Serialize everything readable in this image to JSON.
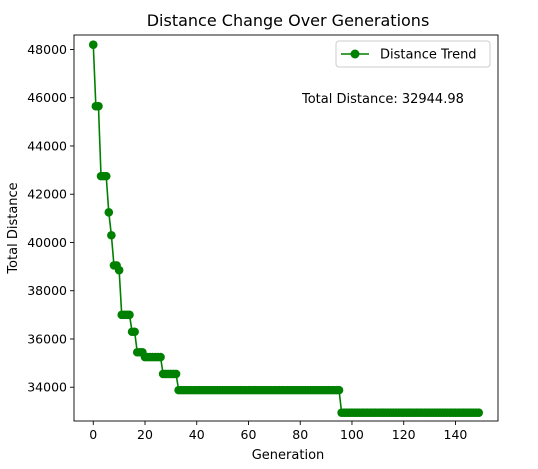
{
  "chart_data": {
    "type": "line",
    "title": "Distance Change Over Generations",
    "xlabel": "Generation",
    "ylabel": "Total Distance",
    "xlim": [
      -7.45,
      156.45
    ],
    "ylim": [
      32600,
      48600
    ],
    "x_ticks": [
      0,
      20,
      40,
      60,
      80,
      100,
      120,
      140
    ],
    "y_ticks": [
      34000,
      36000,
      38000,
      40000,
      42000,
      44000,
      46000,
      48000
    ],
    "grid": false,
    "legend_position": "top-right",
    "series_color": "#008000",
    "annotation": "Total Distance: 32944.98",
    "series": [
      {
        "name": "Distance Trend",
        "x": [
          0,
          1,
          2,
          3,
          4,
          5,
          6,
          7,
          8,
          9,
          10,
          11,
          12,
          13,
          14,
          15,
          16,
          17,
          18,
          19,
          20,
          21,
          22,
          23,
          24,
          25,
          26,
          27,
          28,
          29,
          30,
          31,
          32,
          33,
          34,
          35,
          36,
          37,
          38,
          39,
          40,
          41,
          42,
          43,
          44,
          45,
          46,
          47,
          48,
          49,
          50,
          51,
          52,
          53,
          54,
          55,
          56,
          57,
          58,
          59,
          60,
          61,
          62,
          63,
          64,
          65,
          66,
          67,
          68,
          69,
          70,
          71,
          72,
          73,
          74,
          75,
          76,
          77,
          78,
          79,
          80,
          81,
          82,
          83,
          84,
          85,
          86,
          87,
          88,
          89,
          90,
          91,
          92,
          93,
          94,
          95,
          96,
          97,
          98,
          99,
          100,
          101,
          102,
          103,
          104,
          105,
          106,
          107,
          108,
          109,
          110,
          111,
          112,
          113,
          114,
          115,
          116,
          117,
          118,
          119,
          120,
          121,
          122,
          123,
          124,
          125,
          126,
          127,
          128,
          129,
          130,
          131,
          132,
          133,
          134,
          135,
          136,
          137,
          138,
          139,
          140,
          141,
          142,
          143,
          144,
          145,
          146,
          147,
          148,
          149
        ],
        "y": [
          48200,
          45650,
          45650,
          42750,
          42750,
          42750,
          41250,
          40300,
          39050,
          39050,
          38850,
          37000,
          37000,
          37000,
          37000,
          36300,
          36300,
          35450,
          35450,
          35450,
          35250,
          35250,
          35250,
          35250,
          35250,
          35250,
          35250,
          34550,
          34550,
          34550,
          34550,
          34550,
          34550,
          33880,
          33880,
          33880,
          33880,
          33880,
          33880,
          33880,
          33880,
          33880,
          33880,
          33880,
          33880,
          33880,
          33880,
          33880,
          33880,
          33880,
          33880,
          33880,
          33880,
          33880,
          33880,
          33880,
          33880,
          33880,
          33880,
          33880,
          33880,
          33880,
          33880,
          33880,
          33880,
          33880,
          33880,
          33880,
          33880,
          33880,
          33880,
          33880,
          33880,
          33880,
          33880,
          33880,
          33880,
          33880,
          33880,
          33880,
          33880,
          33880,
          33880,
          33880,
          33880,
          33880,
          33880,
          33880,
          33880,
          33880,
          33880,
          33880,
          33880,
          33880,
          33880,
          33880,
          32944.98,
          32944.98,
          32944.98,
          32944.98,
          32944.98,
          32944.98,
          32944.98,
          32944.98,
          32944.98,
          32944.98,
          32944.98,
          32944.98,
          32944.98,
          32944.98,
          32944.98,
          32944.98,
          32944.98,
          32944.98,
          32944.98,
          32944.98,
          32944.98,
          32944.98,
          32944.98,
          32944.98,
          32944.98,
          32944.98,
          32944.98,
          32944.98,
          32944.98,
          32944.98,
          32944.98,
          32944.98,
          32944.98,
          32944.98,
          32944.98,
          32944.98,
          32944.98,
          32944.98,
          32944.98,
          32944.98,
          32944.98,
          32944.98,
          32944.98,
          32944.98,
          32944.98,
          32944.98,
          32944.98,
          32944.98,
          32944.98,
          32944.98,
          32944.98,
          32944.98,
          32944.98,
          32944.98
        ]
      }
    ]
  }
}
